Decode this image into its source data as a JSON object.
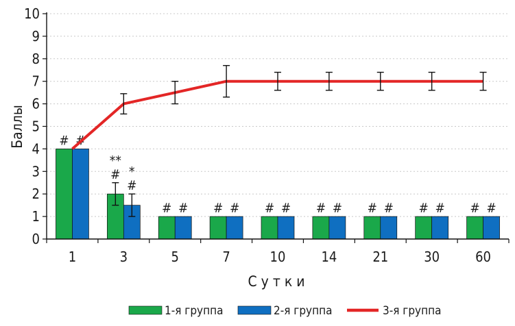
{
  "chart_data": {
    "type": "bar",
    "xlabel": "Сутки",
    "ylabel": "Баллы",
    "ylim": [
      0,
      10
    ],
    "yticks": [
      "0",
      "1",
      "2",
      "3",
      "4",
      "5",
      "6",
      "7",
      "8",
      "9",
      "10"
    ],
    "categories": [
      "1",
      "3",
      "5",
      "7",
      "10",
      "14",
      "21",
      "30",
      "60"
    ],
    "grid": "horizontal dotted",
    "legend_position": "bottom",
    "series": [
      {
        "name": "1-я группа",
        "kind": "bar",
        "color": "#1aa84a",
        "values": [
          4,
          2,
          1,
          1,
          1,
          1,
          1,
          1,
          1
        ],
        "errors": [
          0,
          0.5,
          0,
          0,
          0,
          0,
          0,
          0,
          0
        ],
        "marks": [
          [
            "#"
          ],
          [
            "#",
            "**"
          ],
          [
            "#"
          ],
          [
            "#"
          ],
          [
            "#"
          ],
          [
            "#"
          ],
          [
            "#"
          ],
          [
            "#"
          ],
          [
            "#"
          ]
        ]
      },
      {
        "name": "2-я группа",
        "kind": "bar",
        "color": "#0f6fc1",
        "values": [
          4,
          1.5,
          1,
          1,
          1,
          1,
          1,
          1,
          1
        ],
        "errors": [
          0,
          0.5,
          0,
          0,
          0,
          0,
          0,
          0,
          0
        ],
        "marks": [
          [
            "#"
          ],
          [
            "#",
            "*"
          ],
          [
            "#"
          ],
          [
            "#"
          ],
          [
            "#"
          ],
          [
            "#"
          ],
          [
            "#"
          ],
          [
            "#"
          ],
          [
            "#"
          ]
        ]
      },
      {
        "name": "3-я группа",
        "kind": "line",
        "color": "#e32626",
        "values": [
          4,
          6,
          6.5,
          7,
          7,
          7,
          7,
          7,
          7
        ],
        "errors": [
          0,
          0.45,
          0.5,
          0.7,
          0.4,
          0.4,
          0.4,
          0.4,
          0.4
        ]
      }
    ]
  }
}
